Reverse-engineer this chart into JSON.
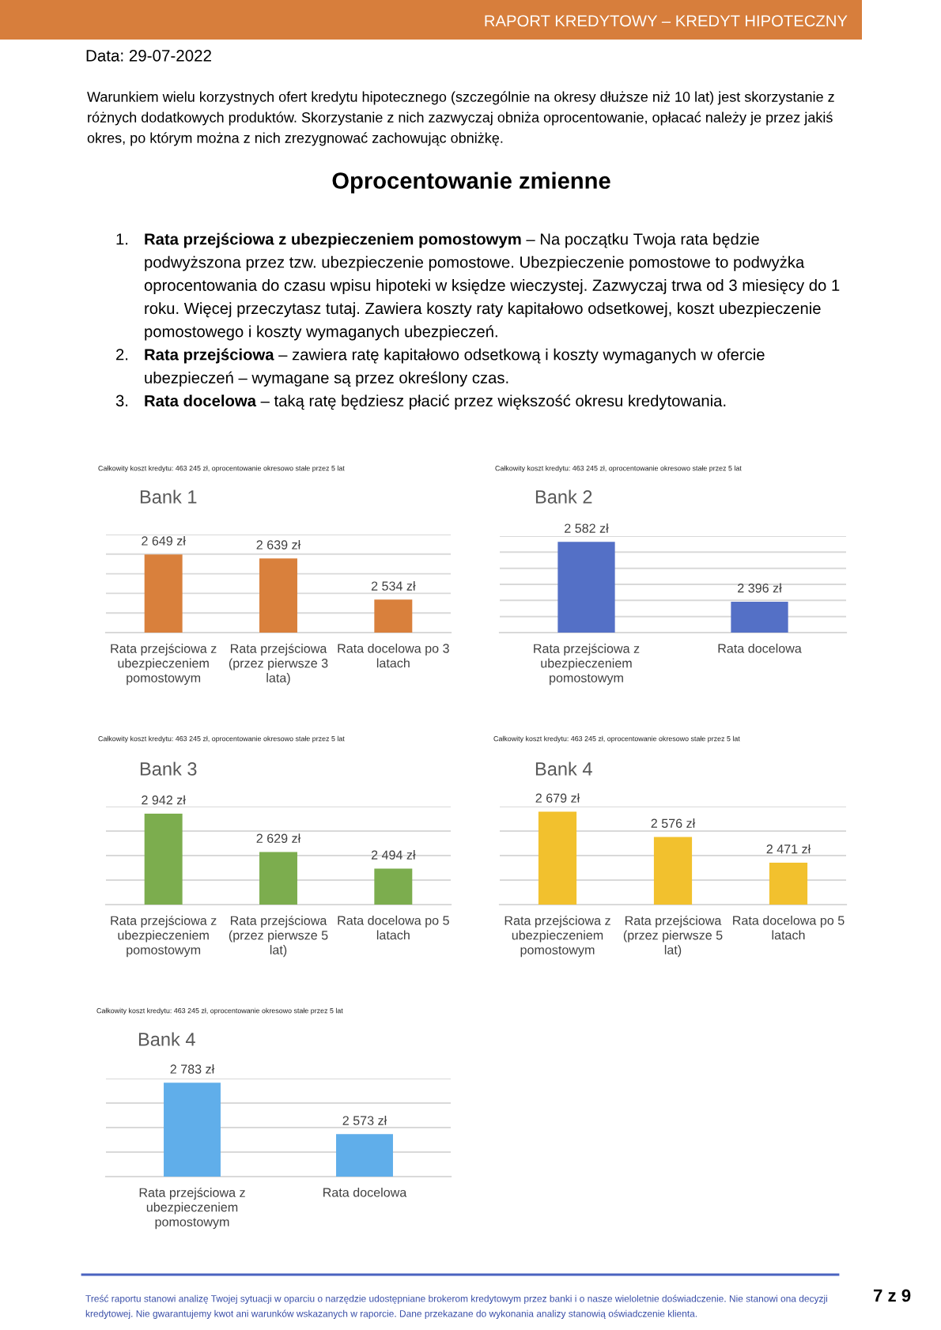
{
  "chart_data": [
    {
      "type": "other",
      "title": "Oprocentowanie zmienne",
      "annotations": [
        "RAPORT KREDYTOWY – KREDYT HIPOTECZNY",
        "Data: 29-07-2022",
        "Warunkiem wielu korzystnych ofert kredytu hipotecznego (szczególnie na okresy dłuższe niż 10 lat) jest skorzystanie z różnych dodatkowych produktów. Skorzystanie z nich zazwyczaj obniża oprocentowanie, opłacać należy je przez jakiś okres, po którym można z nich zrezygnować zachowując obniżkę.",
        "1.",
        "Rata przejściowa z ubezpieczeniem pomostowym",
        "– Na początku Twoja rata będzie podwyższona przez tzw. ubezpieczenie pomostowe. Ubezpieczenie pomostowe to podwyżka oprocentowania do czasu wpisu hipoteki w księdze wieczystej. Zazwyczaj trwa od 3 miesięcy do 1 roku. Więcej przeczytasz tutaj. Zawiera koszty raty kapitałowo odsetkowej, koszt ubezpieczenie pomostowego i koszty wymaganych ubezpieczeń.",
        "2.",
        "Rata przejściowa",
        "– zawiera ratę kapitałowo odsetkową i koszty wymaganych w ofercie ubezpieczeń – wymagane są przez określony czas.",
        "3.",
        "Rata docelowa",
        "– taką ratę będziesz płacić przez większość okresu kredytowania."
      ]
    },
    {
      "type": "bar",
      "title": "Bank 1",
      "subtitle": "Całkowity koszt kredytu: 463 245 zł, oprocentowanie okresowo stałe przez 5 lat",
      "categories": [
        "Rata przejściowa z ubezpieczeniem pomostowym",
        "Rata przejściowa (przez pierwsze 3 lata)",
        "Rata docelowa po 3 latach"
      ],
      "values": [
        2649,
        2639,
        2534
      ],
      "value_labels": [
        "2 649 zł",
        "2 639 zł",
        "2 534 zł"
      ],
      "color": "#d9803c",
      "ylim": [
        2450,
        2700
      ],
      "yticks": [
        {
          "value": 2450,
          "label": null
        },
        {
          "value": 2500,
          "label": null
        },
        {
          "value": 2550,
          "label": null
        },
        {
          "value": 2600,
          "label": null
        },
        {
          "value": 2650,
          "label": null
        },
        {
          "value": 2700,
          "label": null
        }
      ],
      "grid": "y",
      "tick_labels": "x"
    },
    {
      "type": "bar",
      "title": "Bank 2",
      "subtitle": "Całkowity koszt kredytu: 463 245 zł, oprocentowanie okresowo stałe przez 5 lat",
      "categories": [
        "Rata przejściowa z ubezpieczeniem pomostowym",
        "Rata docelowa"
      ],
      "values": [
        2582,
        2396
      ],
      "value_labels": [
        "2 582 zł",
        "2 396 zł"
      ],
      "color": "#5470c6",
      "ylim": [
        2300,
        2600
      ],
      "yticks": [
        {
          "value": 2300,
          "label": null
        },
        {
          "value": 2350,
          "label": null
        },
        {
          "value": 2400,
          "label": null
        },
        {
          "value": 2450,
          "label": null
        },
        {
          "value": 2500,
          "label": null
        },
        {
          "value": 2550,
          "label": null
        },
        {
          "value": 2600,
          "label": null
        }
      ],
      "grid": "y",
      "tick_labels": "x"
    },
    {
      "type": "bar",
      "title": "Bank 3",
      "subtitle": "Całkowity koszt kredytu: 463 245 zł, oprocentowanie okresowo stałe przez 5 lat",
      "categories": [
        "Rata przejściowa z ubezpieczeniem pomostowym",
        "Rata przejściowa (przez pierwsze 5 lat)",
        "Rata docelowa po 5 latach"
      ],
      "values": [
        2942,
        2629,
        2494
      ],
      "value_labels": [
        "2 942 zł",
        "2 629 zł",
        "2 494 zł"
      ],
      "color": "#7cad4e",
      "ylim": [
        2200,
        3000
      ],
      "yticks": [
        {
          "value": 2200,
          "label": null
        },
        {
          "value": 2400,
          "label": null
        },
        {
          "value": 2600,
          "label": null
        },
        {
          "value": 2800,
          "label": null
        },
        {
          "value": 3000,
          "label": null
        }
      ],
      "grid": "y",
      "tick_labels": "x"
    },
    {
      "type": "bar",
      "title": "Bank 4",
      "subtitle": "Całkowity koszt kredytu: 463 245 zł, oprocentowanie okresowo stałe przez 5 lat",
      "categories": [
        "Rata przejściowa z ubezpieczeniem pomostowym",
        "Rata przejściowa (przez pierwsze 5 lat)",
        "Rata docelowa po 5 latach"
      ],
      "values": [
        2679,
        2576,
        2471
      ],
      "value_labels": [
        "2 679 zł",
        "2 576 zł",
        "2 471 zł"
      ],
      "color": "#f2c12e",
      "ylim": [
        2300,
        2700
      ],
      "yticks": [
        {
          "value": 2300,
          "label": null
        },
        {
          "value": 2400,
          "label": null
        },
        {
          "value": 2500,
          "label": null
        },
        {
          "value": 2600,
          "label": null
        },
        {
          "value": 2700,
          "label": null
        }
      ],
      "grid": "y",
      "tick_labels": "x"
    },
    {
      "type": "bar",
      "title": "Bank 4",
      "subtitle": "Całkowity koszt kredytu: 463 245 zł, oprocentowanie okresowo stałe przez 5 lat",
      "categories": [
        "Rata przejściowa z ubezpieczeniem pomostowym",
        "Rata docelowa"
      ],
      "values": [
        2783,
        2573
      ],
      "value_labels": [
        "2 783 zł",
        "2 573 zł"
      ],
      "color": "#60aeea",
      "ylim": [
        2400,
        2800
      ],
      "yticks": [
        {
          "value": 2400,
          "label": null
        },
        {
          "value": 2500,
          "label": null
        },
        {
          "value": 2600,
          "label": null
        },
        {
          "value": 2700,
          "label": null
        },
        {
          "value": 2800,
          "label": null
        }
      ],
      "grid": "y",
      "tick_labels": "x"
    },
    {
      "type": "other",
      "annotations": [
        "Treść raportu stanowi analizę Twojej sytuacji w oparciu o narzędzie udostępniane brokerom kredytowym przez banki i o nasze wieloletnie doświadczenie. Nie stanowi ona decyzji kredytowej. Nie gwarantujemy kwot ani warunków wskazanych w raporcie. Dane przekazane do wykonania analizy stanowią oświadczenie klienta.",
        "7 z 9"
      ]
    }
  ]
}
